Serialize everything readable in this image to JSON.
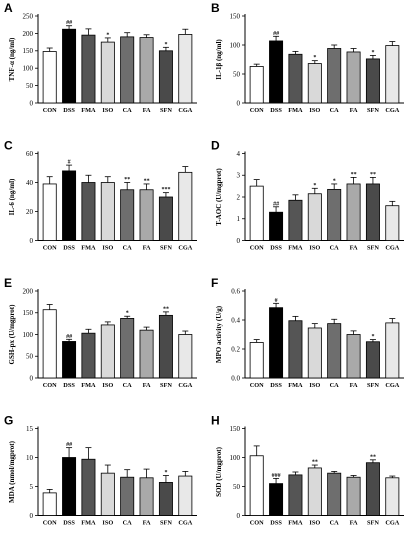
{
  "panel_colors": [
    "#ffffff",
    "#000000",
    "#555555",
    "#d9d9d9",
    "#6e6e6e",
    "#a9a9a9",
    "#4a4a4a",
    "#e8e8e8"
  ],
  "chart_data": [
    {
      "letter": "A",
      "type": "bar",
      "ylabel": "TNF-α (ng/ml)",
      "categories": [
        "CON",
        "DSS",
        "FMA",
        "ISO",
        "CA",
        "FA",
        "SFN",
        "CGA"
      ],
      "values": [
        148,
        212,
        195,
        175,
        190,
        188,
        150,
        197
      ],
      "errors": [
        10,
        10,
        18,
        12,
        12,
        8,
        10,
        15
      ],
      "annotations": [
        "",
        "##",
        "",
        "*",
        "",
        "",
        "*",
        ""
      ],
      "ylim": [
        0,
        250
      ],
      "yticks": [
        "0",
        "50",
        "100",
        "150",
        "200",
        "250"
      ],
      "ytick_values": [
        0,
        50,
        100,
        150,
        200,
        250
      ]
    },
    {
      "letter": "B",
      "type": "bar",
      "ylabel": "IL-1β (ng/ml)",
      "categories": [
        "CON",
        "DSS",
        "FMA",
        "ISO",
        "CA",
        "FA",
        "SFN",
        "CGA"
      ],
      "values": [
        63,
        107,
        84,
        68,
        94,
        88,
        76,
        99
      ],
      "errors": [
        4,
        8,
        5,
        5,
        6,
        6,
        6,
        7
      ],
      "annotations": [
        "",
        "##",
        "",
        "*",
        "",
        "",
        "*",
        ""
      ],
      "ylim": [
        0,
        150
      ],
      "yticks": [
        "0",
        "50",
        "100",
        "150"
      ],
      "ytick_values": [
        0,
        50,
        100,
        150
      ]
    },
    {
      "letter": "C",
      "type": "bar",
      "ylabel": "IL-6 (ng/ml)",
      "categories": [
        "CON",
        "DSS",
        "FMA",
        "ISO",
        "CA",
        "FA",
        "SFN",
        "CGA"
      ],
      "values": [
        39,
        48,
        40,
        40,
        35,
        35,
        30,
        47
      ],
      "errors": [
        5,
        4,
        5,
        4,
        5,
        4,
        3,
        4
      ],
      "annotations": [
        "",
        "#",
        "",
        "",
        "**",
        "**",
        "***",
        ""
      ],
      "ylim": [
        0,
        60
      ],
      "yticks": [
        "0",
        "20",
        "40",
        "60"
      ],
      "ytick_values": [
        0,
        20,
        40,
        60
      ]
    },
    {
      "letter": "D",
      "type": "bar",
      "ylabel": "T-AOC (U/mgprot)",
      "categories": [
        "CON",
        "DSS",
        "FMA",
        "ISO",
        "CA",
        "FA",
        "SFN",
        "CGA"
      ],
      "values": [
        2.5,
        1.3,
        1.85,
        2.15,
        2.35,
        2.6,
        2.6,
        1.6
      ],
      "errors": [
        0.3,
        0.25,
        0.25,
        0.25,
        0.25,
        0.3,
        0.3,
        0.2
      ],
      "annotations": [
        "",
        "##",
        "",
        "*",
        "*",
        "**",
        "**",
        ""
      ],
      "ylim": [
        0,
        4
      ],
      "yticks": [
        "0",
        "1",
        "2",
        "3",
        "4"
      ],
      "ytick_values": [
        0,
        1,
        2,
        3,
        4
      ]
    },
    {
      "letter": "E",
      "type": "bar",
      "ylabel": "GSH-px (U/mgprot)",
      "categories": [
        "CON",
        "DSS",
        "FMA",
        "ISO",
        "CA",
        "FA",
        "SFN",
        "CGA"
      ],
      "values": [
        157,
        84,
        103,
        122,
        137,
        110,
        144,
        100
      ],
      "errors": [
        12,
        5,
        9,
        7,
        5,
        7,
        8,
        8
      ],
      "annotations": [
        "",
        "##",
        "",
        "",
        "*",
        "",
        "**",
        ""
      ],
      "ylim": [
        0,
        200
      ],
      "yticks": [
        "0",
        "50",
        "100",
        "150",
        "200"
      ],
      "ytick_values": [
        0,
        50,
        100,
        150,
        200
      ]
    },
    {
      "letter": "F",
      "type": "bar",
      "ylabel": "MPO activity (U/g)",
      "categories": [
        "CON",
        "DSS",
        "FMA",
        "ISO",
        "CA",
        "FA",
        "SFN",
        "CGA"
      ],
      "values": [
        0.245,
        0.485,
        0.395,
        0.345,
        0.375,
        0.3,
        0.25,
        0.38
      ],
      "errors": [
        0.02,
        0.03,
        0.03,
        0.03,
        0.03,
        0.025,
        0.015,
        0.03
      ],
      "annotations": [
        "",
        "#",
        "",
        "",
        "",
        "",
        "*",
        ""
      ],
      "ylim": [
        0,
        0.6
      ],
      "yticks": [
        "0.0",
        "0.2",
        "0.4",
        "0.6"
      ],
      "ytick_values": [
        0,
        0.2,
        0.4,
        0.6
      ]
    },
    {
      "letter": "G",
      "type": "bar",
      "ylabel": "MDA (nmol/mgprot)",
      "categories": [
        "CON",
        "DSS",
        "FMA",
        "ISO",
        "CA",
        "FA",
        "SFN",
        "CGA"
      ],
      "values": [
        3.9,
        10.0,
        9.7,
        7.3,
        6.6,
        6.5,
        5.7,
        6.8
      ],
      "errors": [
        0.6,
        1.7,
        2.0,
        1.4,
        1.3,
        1.5,
        1.2,
        0.8
      ],
      "annotations": [
        "",
        "##",
        "",
        "",
        "",
        "",
        "*",
        ""
      ],
      "ylim": [
        0,
        15
      ],
      "yticks": [
        "0",
        "5",
        "10",
        "15"
      ],
      "ytick_values": [
        0,
        5,
        10,
        15
      ]
    },
    {
      "letter": "H",
      "type": "bar",
      "ylabel": "SOD (U/mgprot)",
      "categories": [
        "CON",
        "DSS",
        "FMA",
        "ISO",
        "CA",
        "FA",
        "SFN",
        "CGA"
      ],
      "values": [
        103,
        55,
        70,
        82,
        73,
        66,
        91,
        65
      ],
      "errors": [
        17,
        9,
        5,
        5,
        3,
        3,
        5,
        3
      ],
      "annotations": [
        "",
        "###",
        "",
        "**",
        "",
        "",
        "**",
        ""
      ],
      "ylim": [
        0,
        150
      ],
      "yticks": [
        "0",
        "50",
        "100",
        "150"
      ],
      "ytick_values": [
        0,
        50,
        100,
        150
      ]
    }
  ]
}
